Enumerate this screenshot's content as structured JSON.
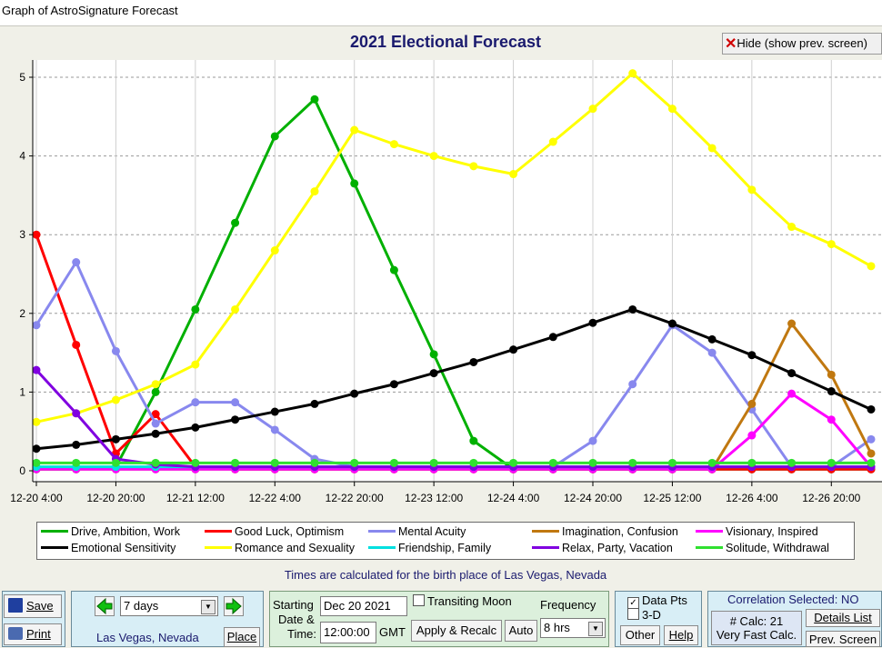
{
  "window": {
    "title": "Graph of AstroSignature Forecast"
  },
  "header": {
    "hide_label": "Hide (show prev. screen)"
  },
  "chart_data": {
    "type": "line",
    "title": "2021 Electional Forecast",
    "xlabel": "",
    "ylabel": "",
    "ylim": [
      0,
      5.3
    ],
    "yticks": [
      0,
      1,
      2,
      3,
      4,
      5
    ],
    "grid": true,
    "legend_position": "bottom",
    "x_tick_labels": [
      "12-20 4:00",
      "12-20 20:00",
      "12-21 12:00",
      "12-22 4:00",
      "12-22 20:00",
      "12-23 12:00",
      "12-24 4:00",
      "12-24 20:00",
      "12-25 12:00",
      "12-26 4:00",
      "12-26 20:00"
    ],
    "x_tick_hours": [
      4,
      20,
      36,
      52,
      68,
      84,
      100,
      116,
      132,
      148,
      164
    ],
    "x": [
      4,
      12,
      20,
      28,
      36,
      44,
      52,
      60,
      68,
      76,
      84,
      92,
      100,
      108,
      116,
      124,
      132,
      140,
      148,
      156,
      164,
      172
    ],
    "series": [
      {
        "name": "Drive, Ambition, Work",
        "color": "#00b000",
        "values": [
          0.02,
          0.02,
          0.05,
          1.0,
          2.05,
          3.15,
          4.25,
          4.72,
          3.65,
          2.55,
          1.48,
          0.38,
          0.02,
          0.02,
          0.02,
          0.02,
          0.02,
          0.02,
          0.02,
          0.02,
          0.02,
          0.02
        ]
      },
      {
        "name": "Good Luck, Optimism",
        "color": "#ff0000",
        "values": [
          3.0,
          1.6,
          0.22,
          0.72,
          0.05,
          0.02,
          0.02,
          0.02,
          0.02,
          0.02,
          0.02,
          0.02,
          0.02,
          0.02,
          0.02,
          0.02,
          0.02,
          0.02,
          0.02,
          0.02,
          0.02,
          0.02
        ]
      },
      {
        "name": "Mental Acuity",
        "color": "#8888ee",
        "values": [
          1.85,
          2.65,
          1.52,
          0.6,
          0.87,
          0.87,
          0.52,
          0.15,
          0.05,
          0.05,
          0.05,
          0.05,
          0.05,
          0.05,
          0.38,
          1.1,
          1.85,
          1.5,
          0.78,
          0.05,
          0.05,
          0.4
        ]
      },
      {
        "name": "Imagination, Confusion",
        "color": "#c07810",
        "values": [
          0.02,
          0.02,
          0.02,
          0.02,
          0.02,
          0.02,
          0.02,
          0.02,
          0.02,
          0.02,
          0.02,
          0.02,
          0.02,
          0.02,
          0.02,
          0.02,
          0.02,
          0.02,
          0.85,
          1.87,
          1.22,
          0.22
        ]
      },
      {
        "name": "Visionary, Inspired",
        "color": "#ff00ff",
        "values": [
          0.02,
          0.02,
          0.02,
          0.02,
          0.02,
          0.02,
          0.02,
          0.02,
          0.02,
          0.02,
          0.02,
          0.02,
          0.02,
          0.02,
          0.02,
          0.02,
          0.02,
          0.02,
          0.45,
          0.98,
          0.65,
          0.05
        ]
      },
      {
        "name": "Emotional Sensitivity",
        "color": "#000000",
        "values": [
          0.28,
          0.33,
          0.4,
          0.47,
          0.55,
          0.65,
          0.75,
          0.85,
          0.98,
          1.1,
          1.24,
          1.38,
          1.54,
          1.7,
          1.88,
          2.05,
          1.87,
          1.67,
          1.47,
          1.24,
          1.01,
          0.78
        ]
      },
      {
        "name": "Romance and Sexuality",
        "color": "#ffff00",
        "values": [
          0.62,
          0.73,
          0.9,
          1.1,
          1.35,
          2.05,
          2.8,
          3.55,
          4.33,
          4.15,
          4.0,
          3.87,
          3.77,
          4.18,
          4.6,
          5.05,
          4.6,
          4.1,
          3.57,
          3.1,
          2.88,
          2.6
        ]
      },
      {
        "name": "Friendship, Family",
        "color": "#00e0e0",
        "values": [
          0.05,
          0.05,
          0.05,
          0.05,
          0.05,
          0.05,
          0.05,
          0.05,
          0.05,
          0.05,
          0.05,
          0.05,
          0.05,
          0.05,
          0.05,
          0.05,
          0.05,
          0.05,
          0.05,
          0.05,
          0.05,
          0.05
        ]
      },
      {
        "name": "Relax, Party, Vacation",
        "color": "#8000e0",
        "values": [
          1.28,
          0.73,
          0.15,
          0.08,
          0.05,
          0.05,
          0.05,
          0.05,
          0.05,
          0.05,
          0.05,
          0.05,
          0.05,
          0.05,
          0.05,
          0.05,
          0.05,
          0.05,
          0.05,
          0.05,
          0.05,
          0.05
        ]
      },
      {
        "name": "Solitude, Withdrawal",
        "color": "#30e030",
        "values": [
          0.1,
          0.1,
          0.1,
          0.1,
          0.1,
          0.1,
          0.1,
          0.1,
          0.1,
          0.1,
          0.1,
          0.1,
          0.1,
          0.1,
          0.1,
          0.1,
          0.1,
          0.1,
          0.1,
          0.1,
          0.1,
          0.1
        ]
      }
    ]
  },
  "note": "Times are calculated for the birth place of Las Vegas, Nevada",
  "controls": {
    "save": "Save",
    "print": "Print",
    "range": "7 days",
    "place_name": "Las Vegas, Nevada",
    "place_btn": "Place",
    "starting_label": "Starting",
    "date_and_label": "Date &",
    "time_label": "Time:",
    "date_value": "Dec 20 2021",
    "time_value": "12:00:00",
    "gmt": "GMT",
    "transiting_moon": "Transiting Moon",
    "apply": "Apply & Recalc",
    "auto": "Auto",
    "frequency_label": "Frequency",
    "frequency_value": "8 hrs",
    "data_pts": "Data Pts",
    "three_d": "3-D",
    "other": "Other",
    "help": "Help",
    "correlation": "Correlation Selected: NO",
    "calc_count": "# Calc: 21",
    "calc_speed": "Very Fast Calc.",
    "details_list": "Details List",
    "prev_screen": "Prev. Screen"
  }
}
